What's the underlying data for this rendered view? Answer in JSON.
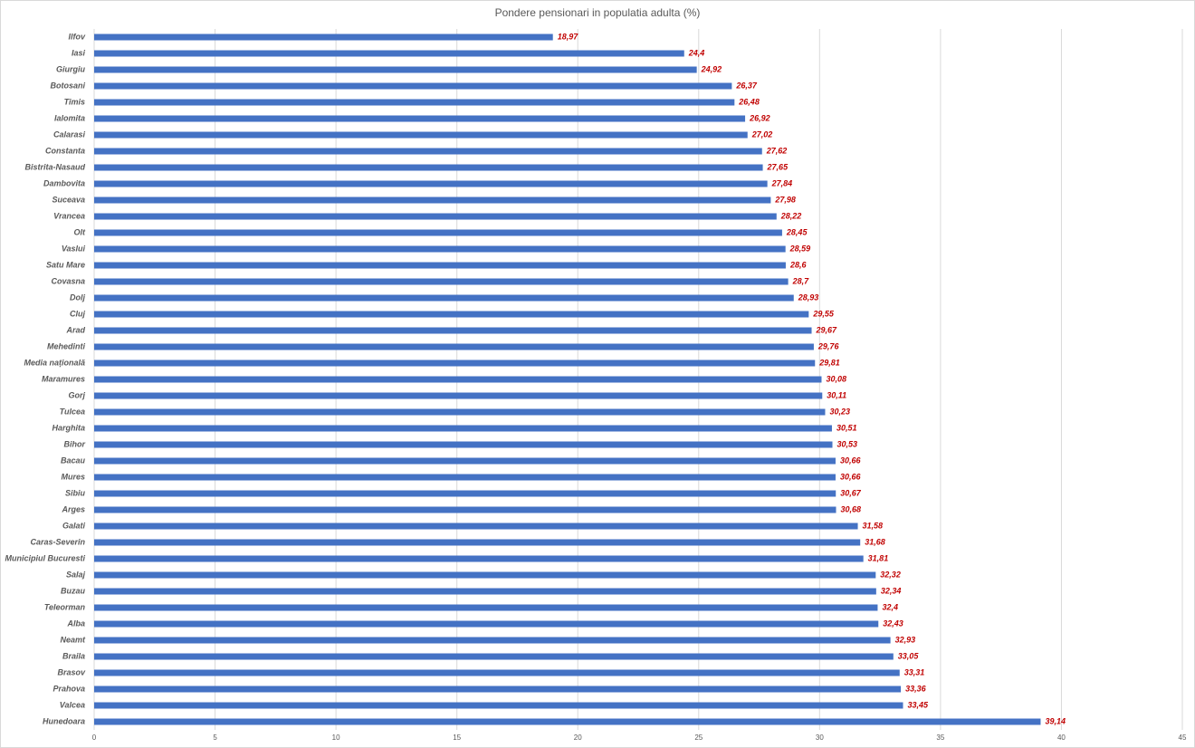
{
  "chart_data": {
    "type": "bar",
    "orientation": "horizontal",
    "title": "Pondere pensionari in populatia adulta (%)",
    "categories": [
      "Ilfov",
      "Iasi",
      "Giurgiu",
      "Botosani",
      "Timis",
      "Ialomita",
      "Calarasi",
      "Constanta",
      "Bistrita-Nasaud",
      "Dambovita",
      "Suceava",
      "Vrancea",
      "Olt",
      "Vaslui",
      "Satu Mare",
      "Covasna",
      "Dolj",
      "Cluj",
      "Arad",
      "Mehedinti",
      "Media națională",
      "Maramures",
      "Gorj",
      "Tulcea",
      "Harghita",
      "Bihor",
      "Bacau",
      "Mures",
      "Sibiu",
      "Arges",
      "Galati",
      "Caras-Severin",
      "Municipiul Bucuresti",
      "Salaj",
      "Buzau",
      "Teleorman",
      "Alba",
      "Neamt",
      "Braila",
      "Brasov",
      "Prahova",
      "Valcea",
      "Hunedoara"
    ],
    "values": [
      18.97,
      24.4,
      24.92,
      26.37,
      26.48,
      26.92,
      27.02,
      27.62,
      27.65,
      27.84,
      27.98,
      28.22,
      28.45,
      28.59,
      28.6,
      28.7,
      28.93,
      29.55,
      29.67,
      29.76,
      29.81,
      30.08,
      30.11,
      30.23,
      30.51,
      30.53,
      30.66,
      30.66,
      30.67,
      30.68,
      31.58,
      31.68,
      31.81,
      32.32,
      32.34,
      32.4,
      32.43,
      32.93,
      33.05,
      33.31,
      33.36,
      33.45,
      39.14
    ],
    "value_labels": [
      "18,97",
      "24,4",
      "24,92",
      "26,37",
      "26,48",
      "26,92",
      "27,02",
      "27,62",
      "27,65",
      "27,84",
      "27,98",
      "28,22",
      "28,45",
      "28,59",
      "28,6",
      "28,7",
      "28,93",
      "29,55",
      "29,67",
      "29,76",
      "29,81",
      "30,08",
      "30,11",
      "30,23",
      "30,51",
      "30,53",
      "30,66",
      "30,66",
      "30,67",
      "30,68",
      "31,58",
      "31,68",
      "31,81",
      "32,32",
      "32,34",
      "32,4",
      "32,43",
      "32,93",
      "33,05",
      "33,31",
      "33,36",
      "33,45",
      "39,14"
    ],
    "color": "#4472c4",
    "label_color": "#c00000",
    "xlim": [
      0,
      45
    ],
    "xticks": [
      0,
      5,
      10,
      15,
      20,
      25,
      30,
      35,
      40,
      45
    ],
    "grid": true
  }
}
